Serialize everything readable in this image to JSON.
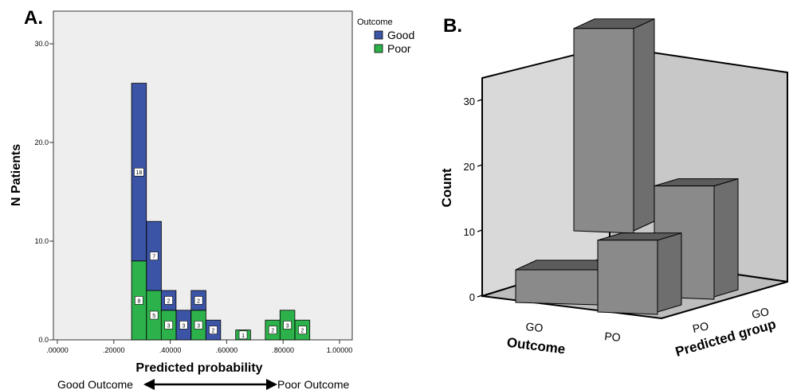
{
  "panel_a": {
    "panel_label": "A.",
    "legend_title": "Outcome",
    "arrow_left_label": "Good Outcome",
    "arrow_right_label": "Poor Outcome"
  },
  "panel_b": {
    "panel_label": "B."
  },
  "colors": {
    "good": "#3B54A6",
    "poor": "#2DB24B",
    "plot_bg": "#EEEEEE",
    "bar3d_front": "#8A8A8A",
    "bar3d_side": "#6E6E6E",
    "bar3d_top": "#5C5C5C",
    "wall_back": "#C8C8C8",
    "wall_side": "#D9D9D9",
    "floor": "#BDBDBD"
  },
  "chart_data": [
    {
      "type": "bar",
      "stacked": true,
      "xlabel": "Predicted probability",
      "ylabel": "N Patients",
      "xlim": [
        0,
        1.05
      ],
      "ylim": [
        0,
        32
      ],
      "x_ticks": [
        ".00000",
        ".20000",
        ".40000",
        ".60000",
        ".80000",
        "1.00000"
      ],
      "y_ticks": [
        "0.0",
        "10.0",
        "20.0",
        "30.0"
      ],
      "legend_placement": "right",
      "bin_width": 0.0526,
      "bins_start": [
        0.263,
        0.316,
        0.368,
        0.421,
        0.474,
        0.526,
        0.632,
        0.737,
        0.789,
        0.842,
        0.895
      ],
      "series": [
        {
          "name": "Poor",
          "values": [
            8,
            5,
            3,
            0,
            3,
            0,
            1,
            2,
            3,
            2,
            0
          ],
          "labels": [
            "8",
            "5",
            "3",
            "",
            "3",
            "",
            "1",
            "2",
            "3",
            "2",
            ""
          ]
        },
        {
          "name": "Good",
          "values": [
            18,
            7,
            2,
            3,
            2,
            2,
            0,
            0,
            0,
            0,
            0
          ],
          "labels": [
            "18",
            "7",
            "2",
            "3",
            "2",
            "2",
            "",
            "",
            "",
            "",
            ""
          ]
        }
      ],
      "legend": [
        "Good",
        "Poor"
      ]
    },
    {
      "type": "bar",
      "three_d": true,
      "ylabel": "Count",
      "xlabel": "Outcome",
      "zlabel": "Predicted group",
      "x_categories": [
        "GO",
        "PO"
      ],
      "z_categories": [
        "PO",
        "GO"
      ],
      "y_ticks": [
        "0",
        "10",
        "20",
        "30"
      ],
      "ylim": [
        0,
        33
      ],
      "bars": [
        {
          "outcome": "GO",
          "predicted": "GO",
          "value": 5
        },
        {
          "outcome": "PO",
          "predicted": "GO",
          "value": 17
        },
        {
          "outcome": "GO",
          "predicted": "PO",
          "value": 31
        },
        {
          "outcome": "PO",
          "predicted": "PO",
          "value": 11
        }
      ]
    }
  ]
}
